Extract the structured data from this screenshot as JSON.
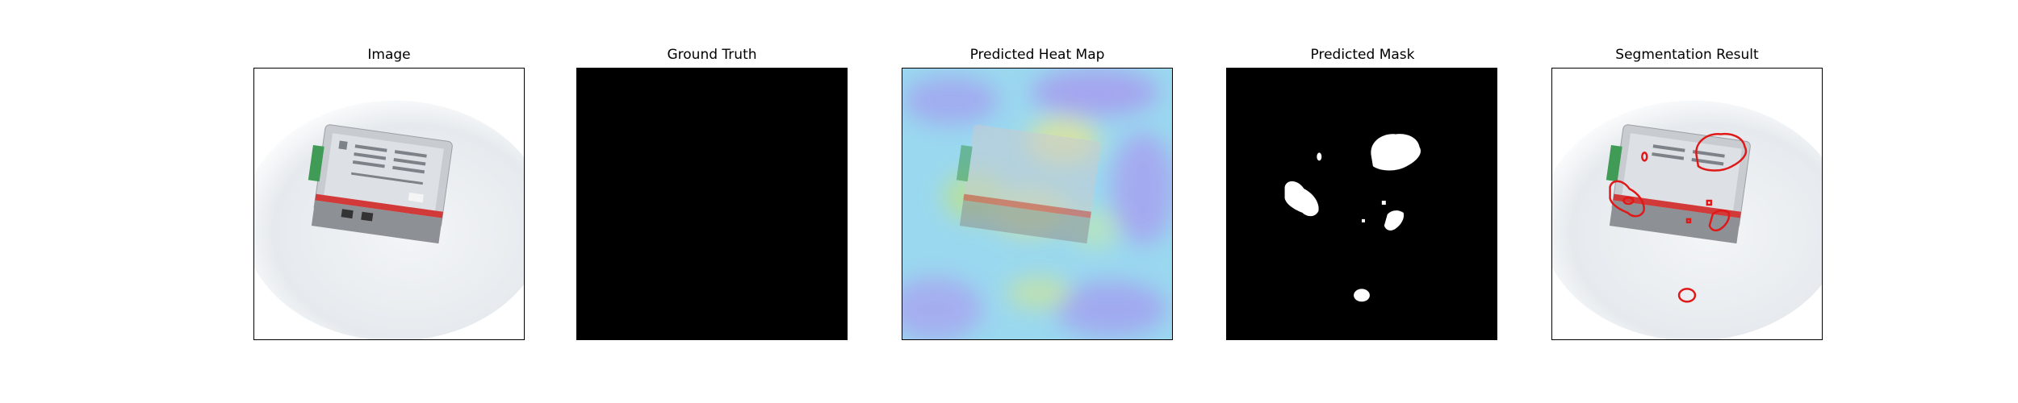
{
  "figure": {
    "panels": [
      {
        "title": "Image"
      },
      {
        "title": "Ground Truth"
      },
      {
        "title": "Predicted Heat Map"
      },
      {
        "title": "Predicted Mask"
      },
      {
        "title": "Segmentation Result"
      }
    ]
  },
  "colors": {
    "background": "#ffffff",
    "mask_background": "#000000",
    "mask_foreground": "#ffffff",
    "contour": "#e01818",
    "device_body": "#c9cdd2",
    "device_accent_red": "#d23a3a",
    "connector_green": "#3f9b55"
  }
}
